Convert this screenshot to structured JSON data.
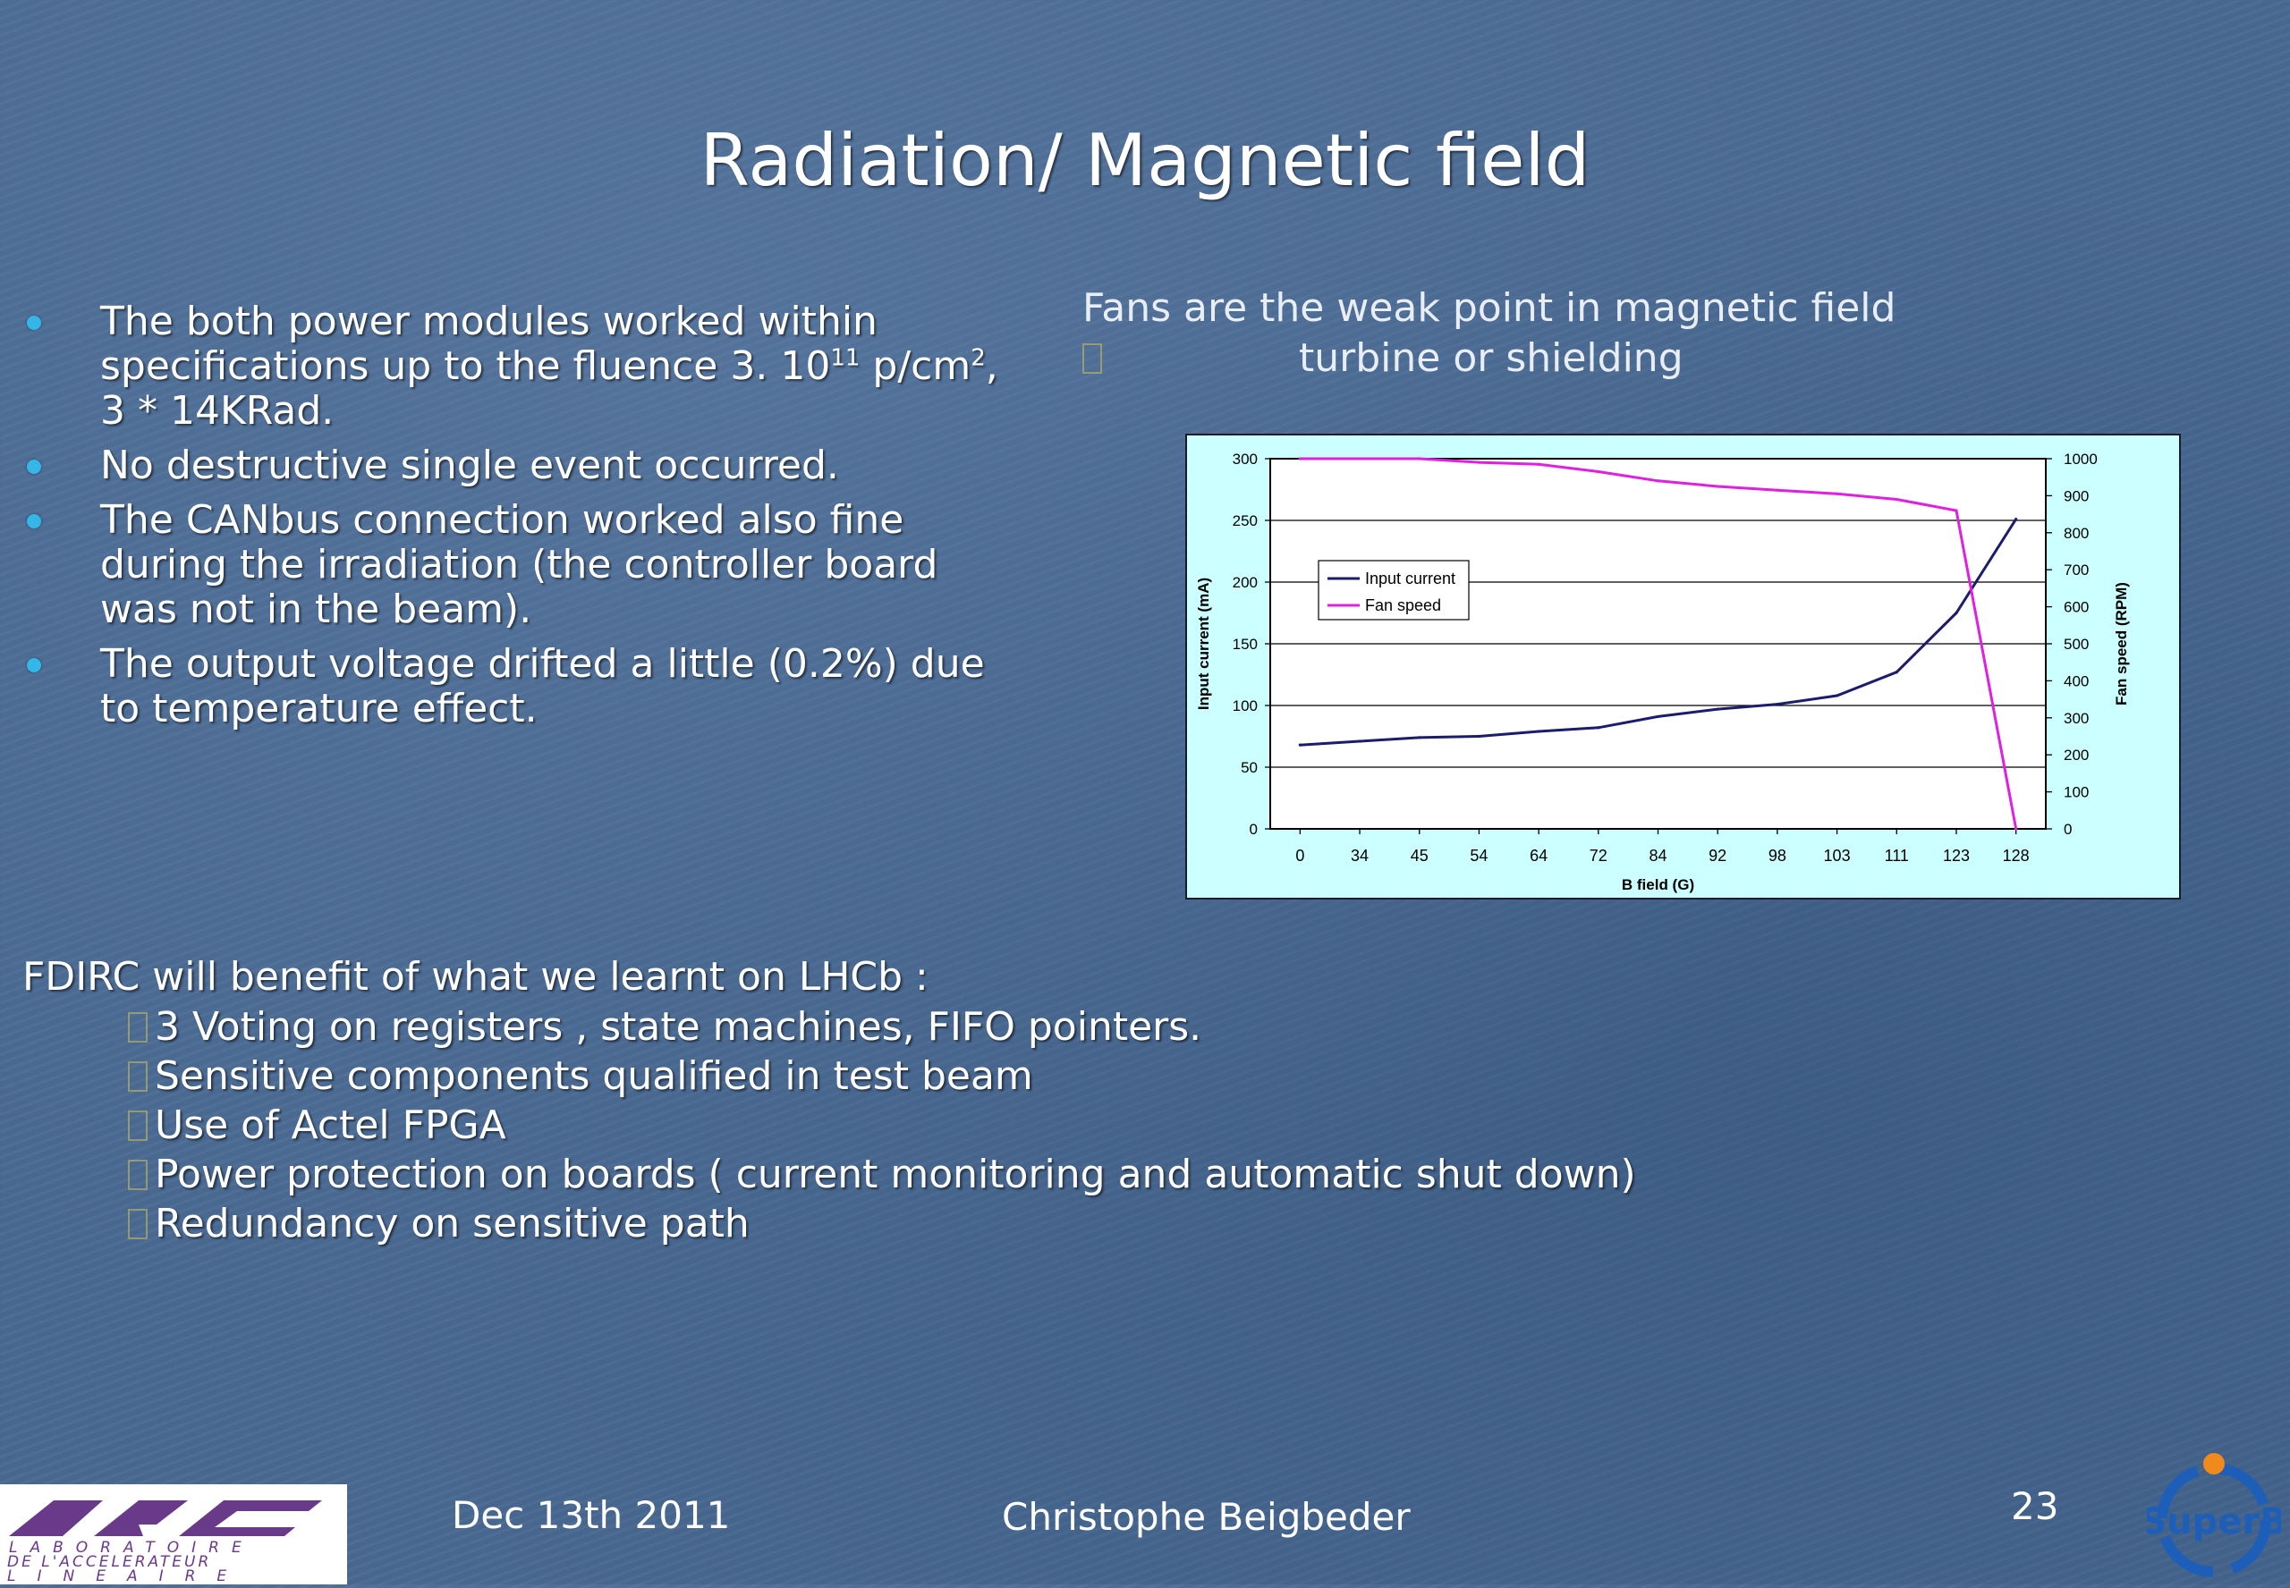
{
  "slide": {
    "title": "Radiation/ Magnetic field",
    "bullets": [
      {
        "before": "The both power modules worked within specifications up to the fluence 3. 10",
        "sup1": "11",
        "mid": " p/cm",
        "sup2": "2",
        "after": ", 3 * 14KRad."
      },
      {
        "text": "No destructive single event occurred."
      },
      {
        "text": "The CANbus connection worked also fine during the irradiation (the controller board was not in the beam)."
      },
      {
        "text": "The output voltage drifted a little (0.2%) due to temperature effect."
      }
    ],
    "fans": {
      "heading": "Fans are the weak point in magnetic field",
      "sub": "turbine or shielding"
    },
    "benefits": {
      "heading": "FDIRC will benefit of what we learnt on LHCb :",
      "items": [
        "3 Voting on registers , state machines, FIFO pointers.",
        "Sensitive components qualified in test beam",
        "Use of Actel FPGA",
        "Power protection on boards ( current monitoring and automatic shut down)",
        "Redundancy on sensitive path"
      ]
    },
    "footer": {
      "date": "Dec 13th  2011",
      "author": "Christophe Beigbeder",
      "page": "23"
    },
    "logos": {
      "lal_text_1": "LABORATOIRE",
      "lal_text_2": "DE L'ACCELERATEUR",
      "lal_text_3": "LINEAIRE",
      "superb_text": "SuperB"
    }
  },
  "colors": {
    "background": "#4a6a93",
    "bullet": "#35b6e8",
    "chart_bg": "#ccffff",
    "input_current": "#1c1c6e",
    "fan_speed": "#e020e0"
  },
  "chart_data": {
    "type": "line",
    "categories": [
      "0",
      "34",
      "45",
      "54",
      "64",
      "72",
      "84",
      "92",
      "98",
      "103",
      "111",
      "123",
      "128"
    ],
    "xlabel": "B field (G)",
    "ylabel": "Input current (mA)",
    "ylabel_right": "Fan speed (RPM)",
    "ylim": [
      0,
      300
    ],
    "ylim_right": [
      0,
      1000
    ],
    "yticks": [
      0,
      50,
      100,
      150,
      200,
      250,
      300
    ],
    "yticks_right": [
      0,
      100,
      200,
      300,
      400,
      500,
      600,
      700,
      800,
      900,
      1000
    ],
    "grid": true,
    "legend": "upper-left",
    "series": [
      {
        "name": "Input current",
        "axis": "left",
        "values": [
          68,
          71,
          74,
          75,
          79,
          82,
          91,
          97,
          101,
          108,
          127,
          175,
          251
        ]
      },
      {
        "name": "Fan speed",
        "axis": "right",
        "values": [
          1000,
          1000,
          1000,
          990,
          985,
          965,
          940,
          925,
          915,
          905,
          890,
          860,
          0
        ]
      }
    ]
  }
}
